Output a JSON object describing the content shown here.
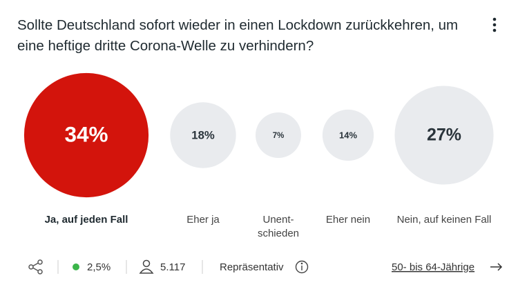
{
  "chart_data": {
    "type": "bubble",
    "title": "Sollte Deutschland sofort wieder in einen Lockdown zurückkehren, um eine heftige dritte Corona-Welle zu verhindern?",
    "categories": [
      "Ja, auf jeden Fall",
      "Eher ja",
      "Unent-\nschieden",
      "Eher nein",
      "Nein, auf keinen Fall"
    ],
    "values": [
      34,
      18,
      7,
      14,
      27
    ],
    "value_labels": [
      "34%",
      "18%",
      "7%",
      "14%",
      "27%"
    ],
    "colors": [
      "#d3140c",
      "#e9ebee",
      "#e9ebee",
      "#e9ebee",
      "#e9ebee"
    ]
  },
  "footer": {
    "error_margin": "2,5%",
    "respondents": "5.117",
    "status": "Repräsentativ",
    "segment": "50- bis 64-Jährige"
  }
}
